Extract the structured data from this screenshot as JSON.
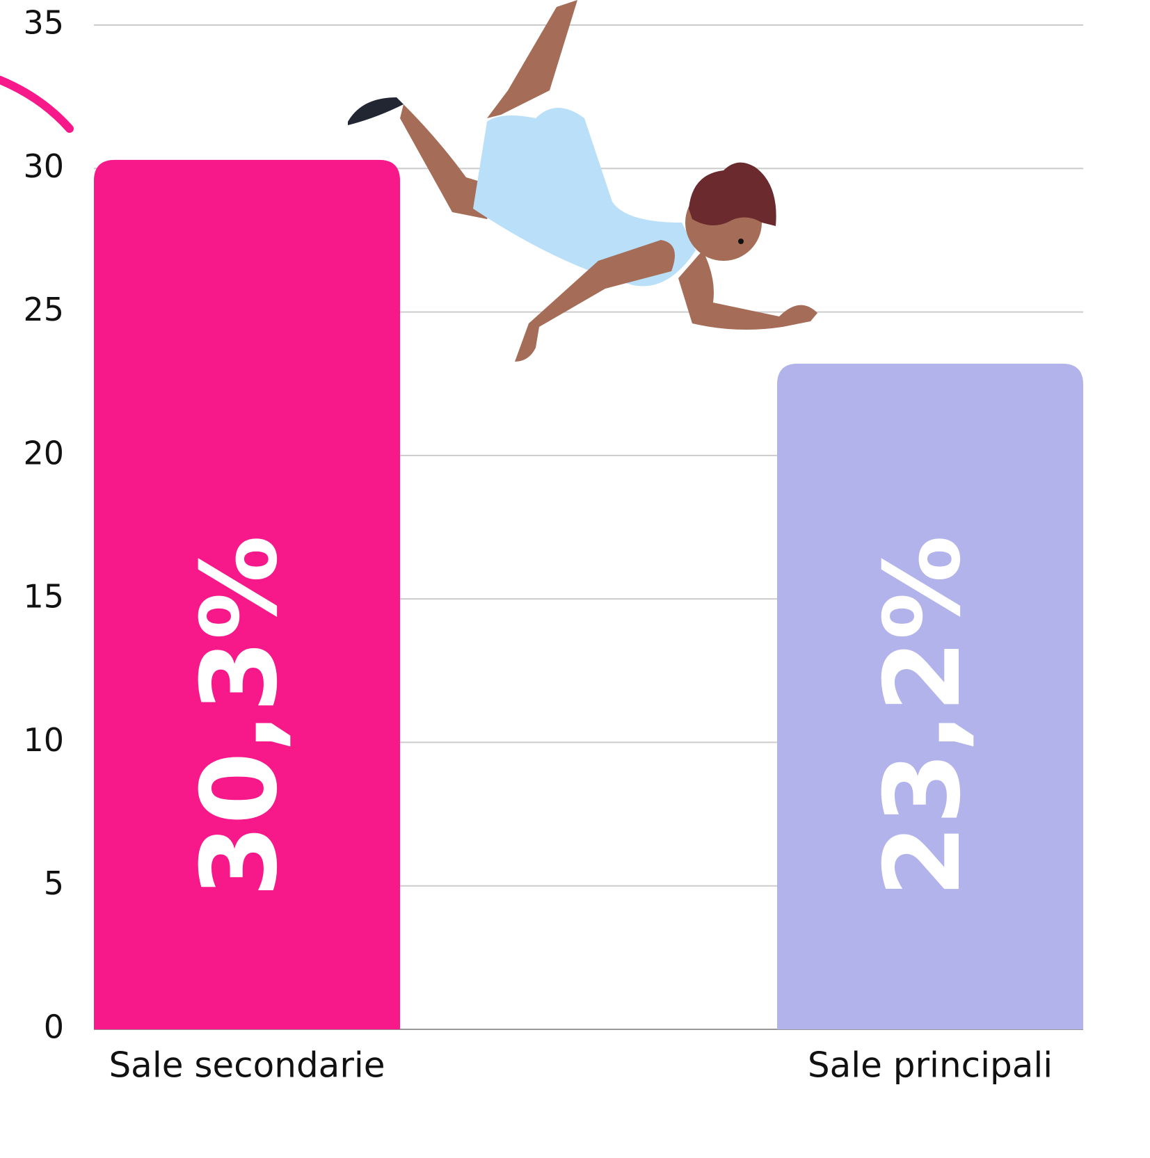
{
  "chart_data": {
    "type": "bar",
    "categories": [
      "Sale secondarie",
      "Sale principali"
    ],
    "values": [
      30.3,
      23.2
    ],
    "value_labels": [
      "30,3%",
      "23,2%"
    ],
    "colors": [
      "#f7188a",
      "#b3b3ec"
    ],
    "ylim": [
      0,
      35
    ],
    "yticks": [
      0,
      5,
      10,
      15,
      20,
      25,
      30,
      35
    ],
    "grid": true
  }
}
